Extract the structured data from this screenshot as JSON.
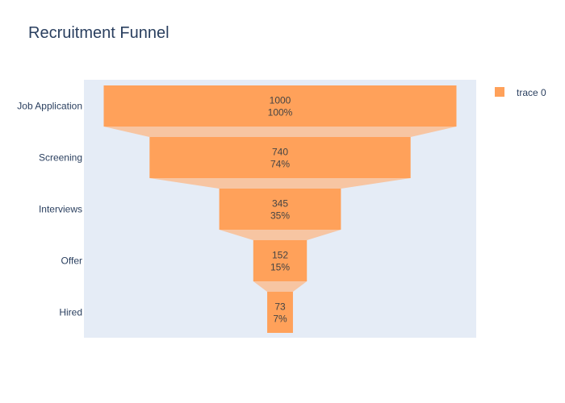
{
  "chart_data": {
    "type": "funnel",
    "title": "Recruitment Funnel",
    "categories": [
      "Job Application",
      "Screening",
      "Interviews",
      "Offer",
      "Hired"
    ],
    "values": [
      1000,
      740,
      345,
      152,
      73
    ],
    "percent_labels": [
      "100%",
      "74%",
      "35%",
      "15%",
      "7%"
    ],
    "series": [
      {
        "name": "trace 0",
        "values": [
          1000,
          740,
          345,
          152,
          73
        ]
      }
    ],
    "legend": {
      "position": "top-right",
      "items": [
        "trace 0"
      ]
    },
    "colors": {
      "bar": "#ffa15a",
      "connector": "#f7c5a2",
      "plot_background": "#e5ecf6"
    }
  }
}
